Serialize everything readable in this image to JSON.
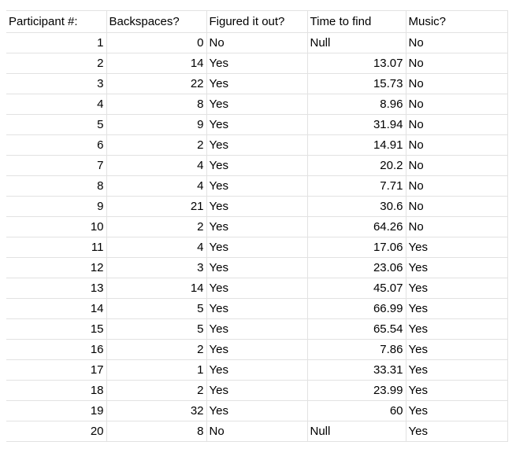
{
  "sheet": {
    "headers": [
      "Participant #:",
      "Backspaces?",
      "Figured it out?",
      "Time to find",
      "Music?"
    ],
    "rows": [
      [
        "1",
        "0",
        "No",
        "Null",
        "No"
      ],
      [
        "2",
        "14",
        "Yes",
        "13.07",
        "No"
      ],
      [
        "3",
        "22",
        "Yes",
        "15.73",
        "No"
      ],
      [
        "4",
        "8",
        "Yes",
        "8.96",
        "No"
      ],
      [
        "5",
        "9",
        "Yes",
        "31.94",
        "No"
      ],
      [
        "6",
        "2",
        "Yes",
        "14.91",
        "No"
      ],
      [
        "7",
        "4",
        "Yes",
        "20.2",
        "No"
      ],
      [
        "8",
        "4",
        "Yes",
        "7.71",
        "No"
      ],
      [
        "9",
        "21",
        "Yes",
        "30.6",
        "No"
      ],
      [
        "10",
        "2",
        "Yes",
        "64.26",
        "No"
      ],
      [
        "11",
        "4",
        "Yes",
        "17.06",
        "Yes"
      ],
      [
        "12",
        "3",
        "Yes",
        "23.06",
        "Yes"
      ],
      [
        "13",
        "14",
        "Yes",
        "45.07",
        "Yes"
      ],
      [
        "14",
        "5",
        "Yes",
        "66.99",
        "Yes"
      ],
      [
        "15",
        "5",
        "Yes",
        "65.54",
        "Yes"
      ],
      [
        "16",
        "2",
        "Yes",
        "7.86",
        "Yes"
      ],
      [
        "17",
        "1",
        "Yes",
        "33.31",
        "Yes"
      ],
      [
        "18",
        "2",
        "Yes",
        "23.99",
        "Yes"
      ],
      [
        "19",
        "32",
        "Yes",
        "60",
        "Yes"
      ],
      [
        "20",
        "8",
        "No",
        "Null",
        "Yes"
      ]
    ]
  }
}
